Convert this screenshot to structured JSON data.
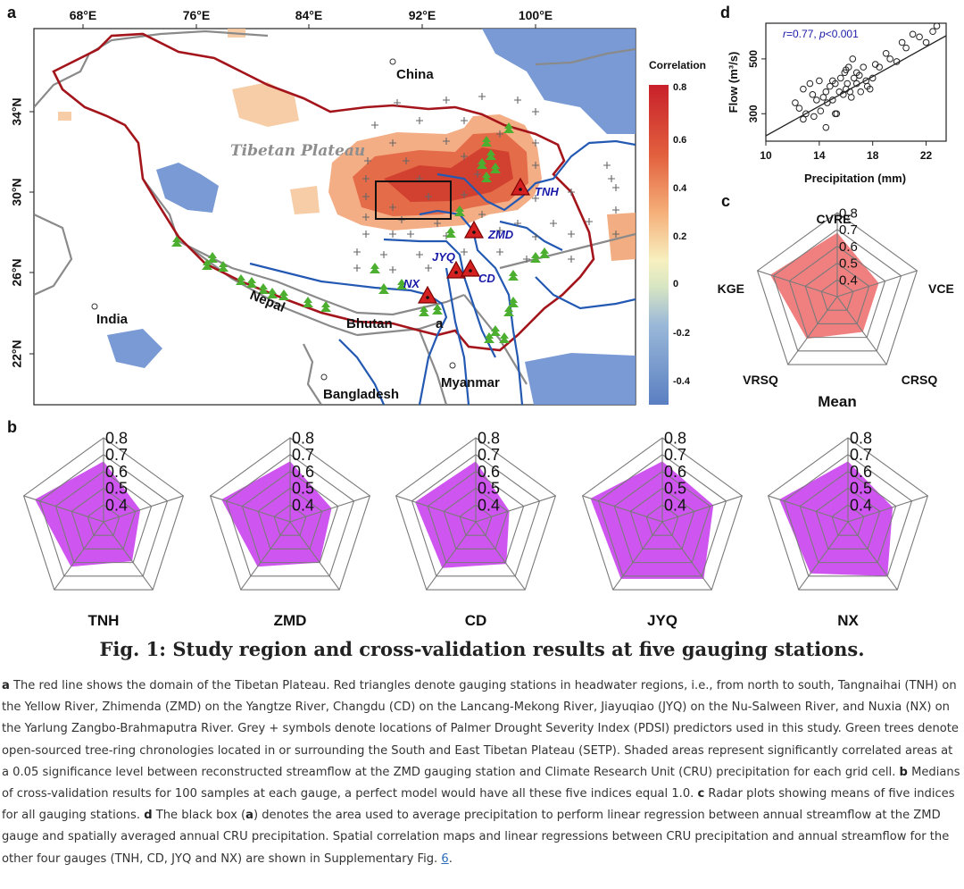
{
  "panel_letters": {
    "a": "a",
    "b": "b",
    "c": "c",
    "d": "d"
  },
  "map": {
    "lon_ticks": [
      "68°E",
      "76°E",
      "84°E",
      "92°E",
      "100°E"
    ],
    "lat_ticks": [
      "34°N",
      "30°N",
      "26°N",
      "22°N"
    ],
    "labels": {
      "china": "China",
      "tibetan_plateau": "Tibetan Plateau",
      "india": "India",
      "nepal": "Nepal",
      "bhutan": "Bhutan",
      "bangladesh": "Bangladesh",
      "myanmar": "Myanmar",
      "inset_a": "a"
    },
    "stations": [
      "TNH",
      "ZMD",
      "JYQ",
      "CD",
      "NX"
    ],
    "colorbar": {
      "title": "Correlation",
      "ticks": [
        "0.8",
        "0.6",
        "0.4",
        "0.2",
        "0",
        "-0.2",
        "-0.4"
      ]
    },
    "colors": {
      "plateau_boundary": "#a3141b",
      "rivers": "#2359b3",
      "borders": "#808080",
      "trees": "#4caf30",
      "stations": "#d42020",
      "station_labels": "#1a1aa8"
    }
  },
  "scatter": {
    "annotation_r": "r",
    "annotation_rest": "=0.77, ",
    "annotation_p": "p",
    "annotation_p_rest": "<0.001",
    "xlabel": "Precipitation (mm)",
    "ylabel": "Flow (m³/s)",
    "xticks": [
      "10",
      "14",
      "18",
      "22"
    ],
    "yticks": [
      "300",
      "500"
    ]
  },
  "radar_scale": [
    "0.8",
    "0.7",
    "0.6",
    "0.5",
    "0.4"
  ],
  "mean_radar": {
    "title": "Mean",
    "axes": [
      "CVRE",
      "VCE",
      "CRSQ",
      "VRSQ",
      "KGE"
    ],
    "values": [
      0.68,
      0.56,
      0.56,
      0.61,
      0.72
    ],
    "fill": "#f08080"
  },
  "station_radars": [
    {
      "name": "TNH",
      "values": [
        0.66,
        0.53,
        0.59,
        0.63,
        0.73
      ]
    },
    {
      "name": "ZMD",
      "values": [
        0.66,
        0.56,
        0.6,
        0.63,
        0.73
      ]
    },
    {
      "name": "CD",
      "values": [
        0.66,
        0.51,
        0.61,
        0.64,
        0.68
      ]
    },
    {
      "name": "JYQ",
      "values": [
        0.66,
        0.62,
        0.72,
        0.72,
        0.75
      ]
    },
    {
      "name": "NX",
      "values": [
        0.66,
        0.58,
        0.7,
        0.68,
        0.73
      ]
    }
  ],
  "station_radar_fill": "#cf55f0",
  "chart_data": [
    {
      "type": "scatter",
      "title": "r =0.77, p<0.001",
      "xlabel": "Precipitation (mm)",
      "ylabel": "Flow (m3/s)",
      "xlim": [
        10,
        23.5
      ],
      "ylim": [
        200,
        630
      ],
      "x": [
        12.2,
        12.5,
        12.8,
        13.0,
        13.3,
        13.5,
        13.6,
        13.8,
        14.0,
        14.1,
        14.3,
        14.5,
        14.6,
        14.8,
        15.0,
        15.0,
        15.2,
        15.3,
        15.5,
        15.6,
        15.8,
        15.9,
        16.0,
        16.1,
        16.2,
        16.3,
        16.4,
        16.5,
        16.6,
        16.8,
        17.0,
        17.1,
        17.3,
        17.5,
        17.6,
        17.8,
        18.0,
        18.2,
        18.5,
        19.0,
        19.3,
        19.8,
        20.2,
        20.5,
        21.0,
        21.5,
        22.0,
        22.5,
        22.8,
        14.5,
        15.2,
        16.0,
        16.8,
        12.8
      ],
      "y": [
        340,
        320,
        390,
        300,
        410,
        370,
        290,
        350,
        420,
        310,
        360,
        380,
        340,
        400,
        350,
        420,
        410,
        300,
        380,
        430,
        370,
        450,
        390,
        410,
        470,
        380,
        360,
        500,
        430,
        410,
        440,
        380,
        470,
        420,
        400,
        390,
        430,
        480,
        470,
        520,
        500,
        490,
        560,
        540,
        590,
        580,
        560,
        600,
        620,
        250,
        300,
        460,
        450,
        280
      ]
    },
    {
      "type": "radar",
      "title": "Mean",
      "axes": [
        "CVRE",
        "VCE",
        "CRSQ",
        "VRSQ",
        "KGE"
      ],
      "values": [
        0.68,
        0.56,
        0.56,
        0.61,
        0.72
      ],
      "rlim": [
        0.3,
        0.8
      ]
    },
    {
      "type": "radar",
      "title": "Medians of cross-validation results per gauge",
      "axes": [
        "CVRE",
        "VCE",
        "CRSQ",
        "VRSQ",
        "KGE"
      ],
      "series": [
        {
          "name": "TNH",
          "values": [
            0.66,
            0.53,
            0.59,
            0.63,
            0.73
          ]
        },
        {
          "name": "ZMD",
          "values": [
            0.66,
            0.56,
            0.6,
            0.63,
            0.73
          ]
        },
        {
          "name": "CD",
          "values": [
            0.66,
            0.51,
            0.61,
            0.64,
            0.68
          ]
        },
        {
          "name": "JYQ",
          "values": [
            0.66,
            0.62,
            0.72,
            0.72,
            0.75
          ]
        },
        {
          "name": "NX",
          "values": [
            0.66,
            0.58,
            0.7,
            0.68,
            0.73
          ]
        }
      ],
      "rlim": [
        0.3,
        0.8
      ]
    }
  ],
  "figure_title": "Fig. 1: Study region and cross-validation results at five gauging stations.",
  "caption": {
    "a_label": "a",
    "a_text": " The red line shows the domain of the Tibetan Plateau. Red triangles denote gauging stations in headwater regions, i.e., from north to south, Tangnaihai (TNH) on the Yellow River, Zhimenda (ZMD) on the Yangtze River, Changdu (CD) on the Lancang-Mekong River, Jiayuqiao (JYQ) on the Nu-Salween River, and Nuxia (NX) on the Yarlung Zangbo-Brahmaputra River. Grey + symbols denote locations of Palmer Drought Severity Index (PDSI) predictors used in this study. Green trees denote open-sourced tree-ring chronologies located in or surrounding the South and East Tibetan Plateau (SETP). Shaded areas represent significantly correlated areas at a 0.05 significance level between reconstructed streamflow at the ZMD gauging station and Climate Research Unit (CRU) precipitation for each grid cell.",
    "b_label": "b",
    "b_text": " Medians of cross-validation results for 100 samples at each gauge, a perfect model would have all these five indices equal 1.0.",
    "c_label": "c",
    "c_text": " Radar plots showing means of five indices for all gauging stations.",
    "d_label": "d",
    "d_text1": " The black box (",
    "d_inner": "a",
    "d_text2": ") denotes the area used to average precipitation to perform linear regression between annual streamflow at the ZMD gauge and spatially averaged annual CRU precipitation. Spatial correlation maps and linear regressions between CRU precipitation and annual streamflow for the other four gauges (TNH, CD, JYQ and NX) are shown in Supplementary Fig. ",
    "link": "6",
    "end": "."
  }
}
